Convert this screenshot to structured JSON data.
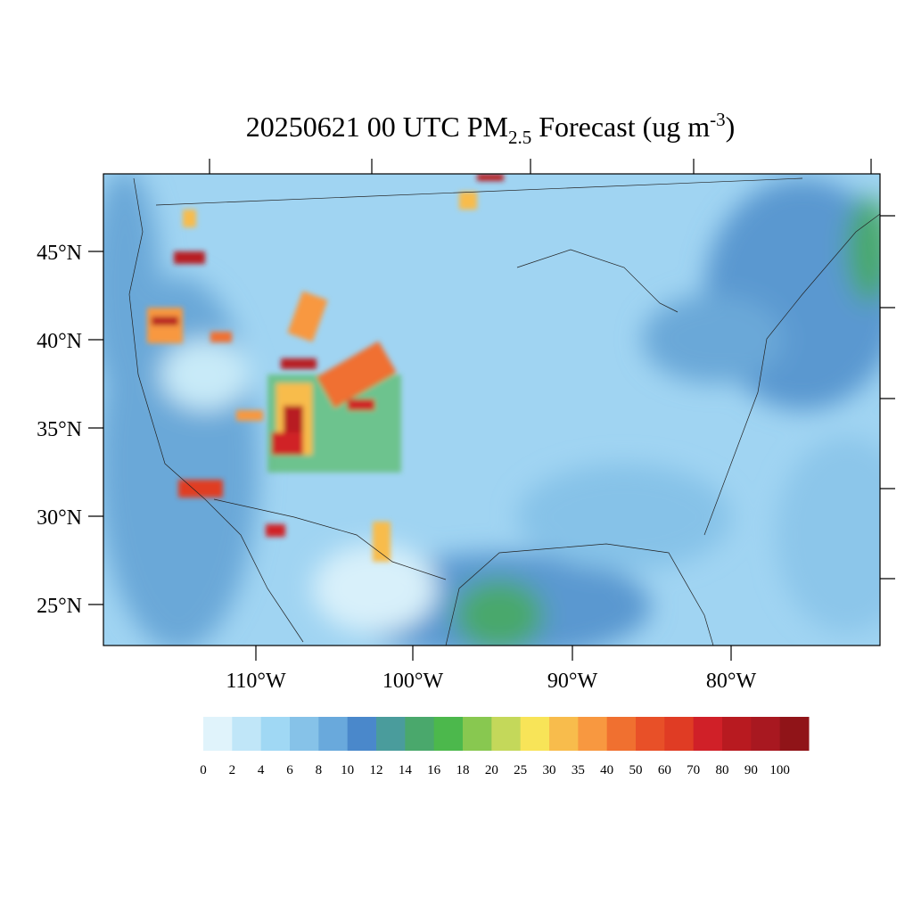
{
  "title": {
    "main": "20250621 00 UTC PM",
    "sub": "2.5",
    "rest": " Forecast (ug m",
    "sup": "-3",
    "close": ")"
  },
  "lat_labels": [
    "45°N",
    "40°N",
    "35°N",
    "30°N",
    "25°N"
  ],
  "lon_labels": [
    "110°W",
    "100°W",
    "90°W",
    "80°W"
  ],
  "colorbar": {
    "levels": [
      0,
      2,
      4,
      6,
      8,
      10,
      12,
      14,
      16,
      18,
      20,
      25,
      30,
      35,
      40,
      50,
      60,
      70,
      80,
      90,
      100
    ],
    "colors": [
      "#e0f3fb",
      "#c0e6f8",
      "#a0d8f4",
      "#86c2e8",
      "#69a9dc",
      "#4a88cb",
      "#4a9c9c",
      "#4aa86c",
      "#4cb84c",
      "#88c850",
      "#c4d85a",
      "#f8e458",
      "#f8bc4c",
      "#f89840",
      "#f07030",
      "#e85028",
      "#e03c24",
      "#d02028",
      "#b81a20",
      "#a81820",
      "#901418"
    ]
  }
}
